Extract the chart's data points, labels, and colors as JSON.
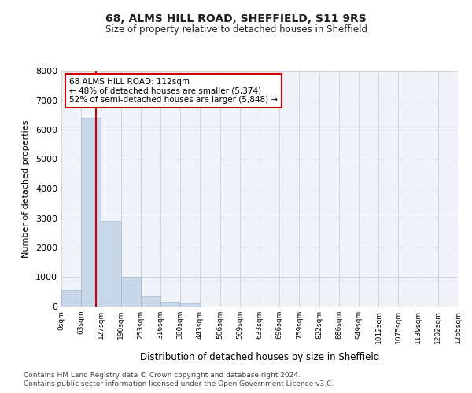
{
  "title1": "68, ALMS HILL ROAD, SHEFFIELD, S11 9RS",
  "title2": "Size of property relative to detached houses in Sheffield",
  "xlabel": "Distribution of detached houses by size in Sheffield",
  "ylabel": "Number of detached properties",
  "bar_values": [
    570,
    6400,
    2920,
    990,
    360,
    165,
    95,
    0,
    0,
    0,
    0,
    0,
    0,
    0,
    0,
    0,
    0,
    0,
    0,
    0
  ],
  "x_labels": [
    "0sqm",
    "63sqm",
    "127sqm",
    "190sqm",
    "253sqm",
    "316sqm",
    "380sqm",
    "443sqm",
    "506sqm",
    "569sqm",
    "633sqm",
    "696sqm",
    "759sqm",
    "822sqm",
    "886sqm",
    "949sqm",
    "1012sqm",
    "1075sqm",
    "1139sqm",
    "1202sqm",
    "1265sqm"
  ],
  "ylim": [
    0,
    8000
  ],
  "yticks": [
    0,
    1000,
    2000,
    3000,
    4000,
    5000,
    6000,
    7000,
    8000
  ],
  "bar_color": "#c8d8e8",
  "bar_edge_color": "#a0b8cc",
  "vline_color": "#cc0000",
  "annotation_text": "68 ALMS HILL ROAD: 112sqm\n← 48% of detached houses are smaller (5,374)\n52% of semi-detached houses are larger (5,848) →",
  "annotation_box_color": "#ffffff",
  "annotation_box_edge": "#cc0000",
  "footer1": "Contains HM Land Registry data © Crown copyright and database right 2024.",
  "footer2": "Contains public sector information licensed under the Open Government Licence v3.0.",
  "grid_color": "#d0d8e0",
  "background_color": "#f0f4f8",
  "figsize": [
    6.0,
    5.0
  ],
  "dpi": 100
}
